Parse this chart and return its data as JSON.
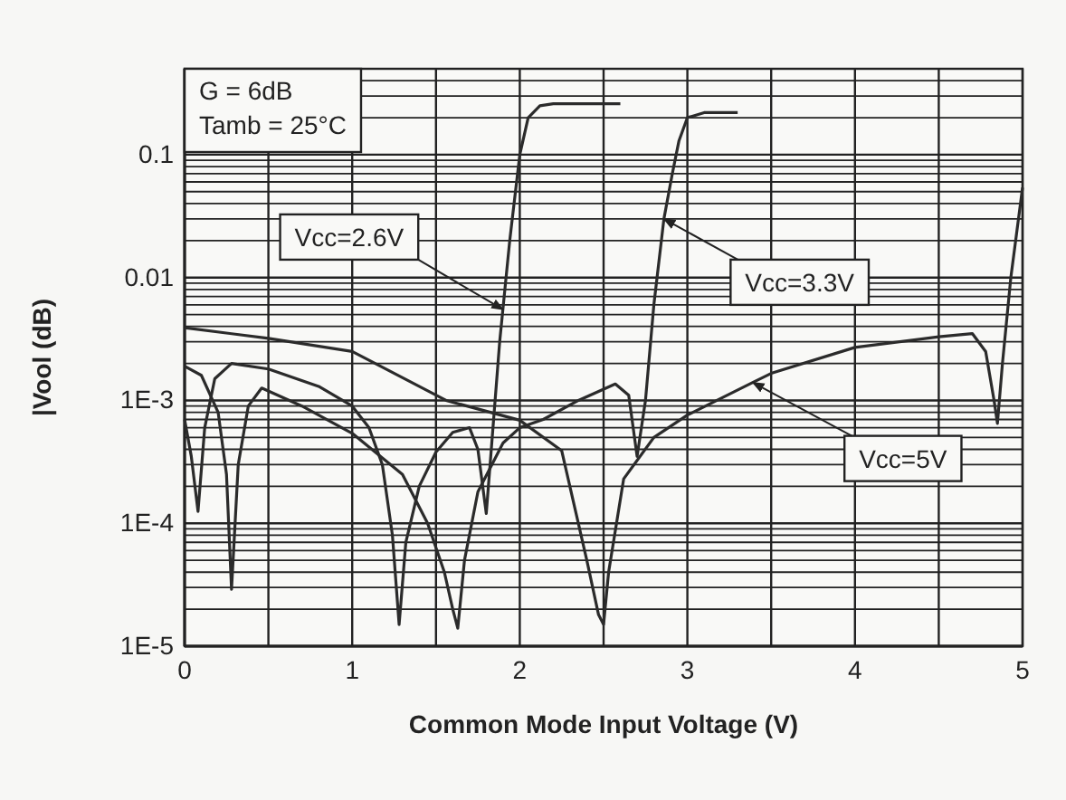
{
  "chart_data": {
    "type": "line",
    "xlabel": "Common Mode Input Voltage (V)",
    "ylabel": "|Vool (dB)",
    "log": "y",
    "grid": true,
    "line_style": "solid",
    "marker": "none",
    "xlim": [
      0,
      5
    ],
    "xticks": [
      0,
      {
        "value": 0.5,
        "label": null
      },
      1,
      {
        "value": 1.5,
        "label": null
      },
      2,
      {
        "value": 2.5,
        "label": null
      },
      3,
      {
        "value": 3.5,
        "label": null
      },
      4,
      {
        "value": 4.5,
        "label": null
      },
      5
    ],
    "ylim": [
      1e-05,
      0.5
    ],
    "yticks": [
      {
        "value": 1e-05,
        "label": "1E-5"
      },
      {
        "value": 2e-05,
        "label": null
      },
      {
        "value": 3e-05,
        "label": null
      },
      {
        "value": 4e-05,
        "label": null
      },
      {
        "value": 5e-05,
        "label": null
      },
      {
        "value": 6e-05,
        "label": null
      },
      {
        "value": 7e-05,
        "label": null
      },
      {
        "value": 8e-05,
        "label": null
      },
      {
        "value": 9e-05,
        "label": null
      },
      {
        "value": 0.0001,
        "label": "1E-4"
      },
      {
        "value": 0.0002,
        "label": null
      },
      {
        "value": 0.0003,
        "label": null
      },
      {
        "value": 0.0004,
        "label": null
      },
      {
        "value": 0.0005,
        "label": null
      },
      {
        "value": 0.0006,
        "label": null
      },
      {
        "value": 0.0007,
        "label": null
      },
      {
        "value": 0.0008,
        "label": null
      },
      {
        "value": 0.0009,
        "label": null
      },
      {
        "value": 0.001,
        "label": "1E-3"
      },
      {
        "value": 0.002,
        "label": null
      },
      {
        "value": 0.003,
        "label": null
      },
      {
        "value": 0.004,
        "label": null
      },
      {
        "value": 0.005,
        "label": null
      },
      {
        "value": 0.006,
        "label": null
      },
      {
        "value": 0.007,
        "label": null
      },
      {
        "value": 0.008,
        "label": null
      },
      {
        "value": 0.009,
        "label": null
      },
      0.01,
      {
        "value": 0.02,
        "label": null
      },
      {
        "value": 0.03,
        "label": null
      },
      {
        "value": 0.04,
        "label": null
      },
      {
        "value": 0.05,
        "label": null
      },
      {
        "value": 0.06,
        "label": null
      },
      {
        "value": 0.07,
        "label": null
      },
      {
        "value": 0.08,
        "label": null
      },
      {
        "value": 0.09,
        "label": null
      },
      0.1,
      {
        "value": 0.2,
        "label": null
      },
      {
        "value": 0.3,
        "label": null
      },
      {
        "value": 0.4,
        "label": null
      },
      {
        "value": 0.5,
        "label": null
      }
    ],
    "series": [
      {
        "color": "#2b2b2b",
        "x": [
          0,
          0.04,
          0.08,
          0.12,
          0.18,
          0.28,
          0.5,
          0.8,
          1.0,
          1.1,
          1.18,
          1.24,
          1.28,
          1.32,
          1.4,
          1.5,
          1.6,
          1.7,
          1.75,
          1.8,
          1.83,
          1.88,
          1.94,
          2.0,
          2.05,
          2.12,
          2.2,
          2.6
        ],
        "values": [
          0.0007,
          0.00035,
          0.000125,
          0.0006,
          0.0015,
          0.002,
          0.0018,
          0.0013,
          0.0009,
          0.0006,
          0.0003,
          8e-05,
          1.5e-05,
          7e-05,
          0.0002,
          0.00038,
          0.00055,
          0.0006,
          0.0004,
          0.00012,
          0.0004,
          0.003,
          0.02,
          0.1,
          0.2,
          0.25,
          0.26,
          0.26
        ]
      },
      {
        "color": "#2b2b2b",
        "x": [
          0,
          0.1,
          0.2,
          0.25,
          0.28,
          0.32,
          0.38,
          0.46,
          0.7,
          1.0,
          1.3,
          1.45,
          1.55,
          1.6,
          1.63,
          1.67,
          1.75,
          1.9,
          2.0,
          2.14,
          2.35,
          2.57,
          2.65,
          2.7,
          2.75,
          2.8,
          2.86,
          2.91,
          2.95,
          3.0,
          3.1,
          3.3
        ],
        "values": [
          0.0019,
          0.0016,
          0.0008,
          0.00025,
          2.9e-05,
          0.0003,
          0.0009,
          0.00126,
          0.0009,
          0.00054,
          0.00025,
          0.0001,
          4e-05,
          2e-05,
          1.4e-05,
          5e-05,
          0.00018,
          0.00045,
          0.0006,
          0.0007,
          0.001,
          0.00136,
          0.0011,
          0.00035,
          0.001,
          0.006,
          0.03,
          0.07,
          0.13,
          0.2,
          0.22,
          0.22
        ]
      },
      {
        "color": "#2b2b2b",
        "x": [
          0,
          0.5,
          1.0,
          1.56,
          2.0,
          2.25,
          2.4,
          2.47,
          2.5,
          2.53,
          2.62,
          2.8,
          3.0,
          3.39,
          3.5,
          4.0,
          4.5,
          4.7,
          4.78,
          4.83,
          4.85,
          4.88,
          4.93,
          5.0
        ],
        "values": [
          0.0039,
          0.0032,
          0.0025,
          0.001,
          0.00069,
          0.00039,
          5e-05,
          1.8e-05,
          1.5e-05,
          4e-05,
          0.00023,
          0.0005,
          0.00076,
          0.0014,
          0.00166,
          0.0027,
          0.0033,
          0.0035,
          0.0025,
          0.001,
          0.00065,
          0.002,
          0.01,
          0.054
        ]
      }
    ],
    "annotations": [
      "G = 6dB",
      "Tamb = 25°C",
      {
        "text": "Vcc=2.6V",
        "x": 1.9,
        "y": 0.0055
      },
      {
        "text": "Vcc=3.3V",
        "x": 2.86,
        "y": 0.03
      },
      {
        "text": "Vcc=5V",
        "x": 3.39,
        "y": 0.0014
      }
    ]
  }
}
